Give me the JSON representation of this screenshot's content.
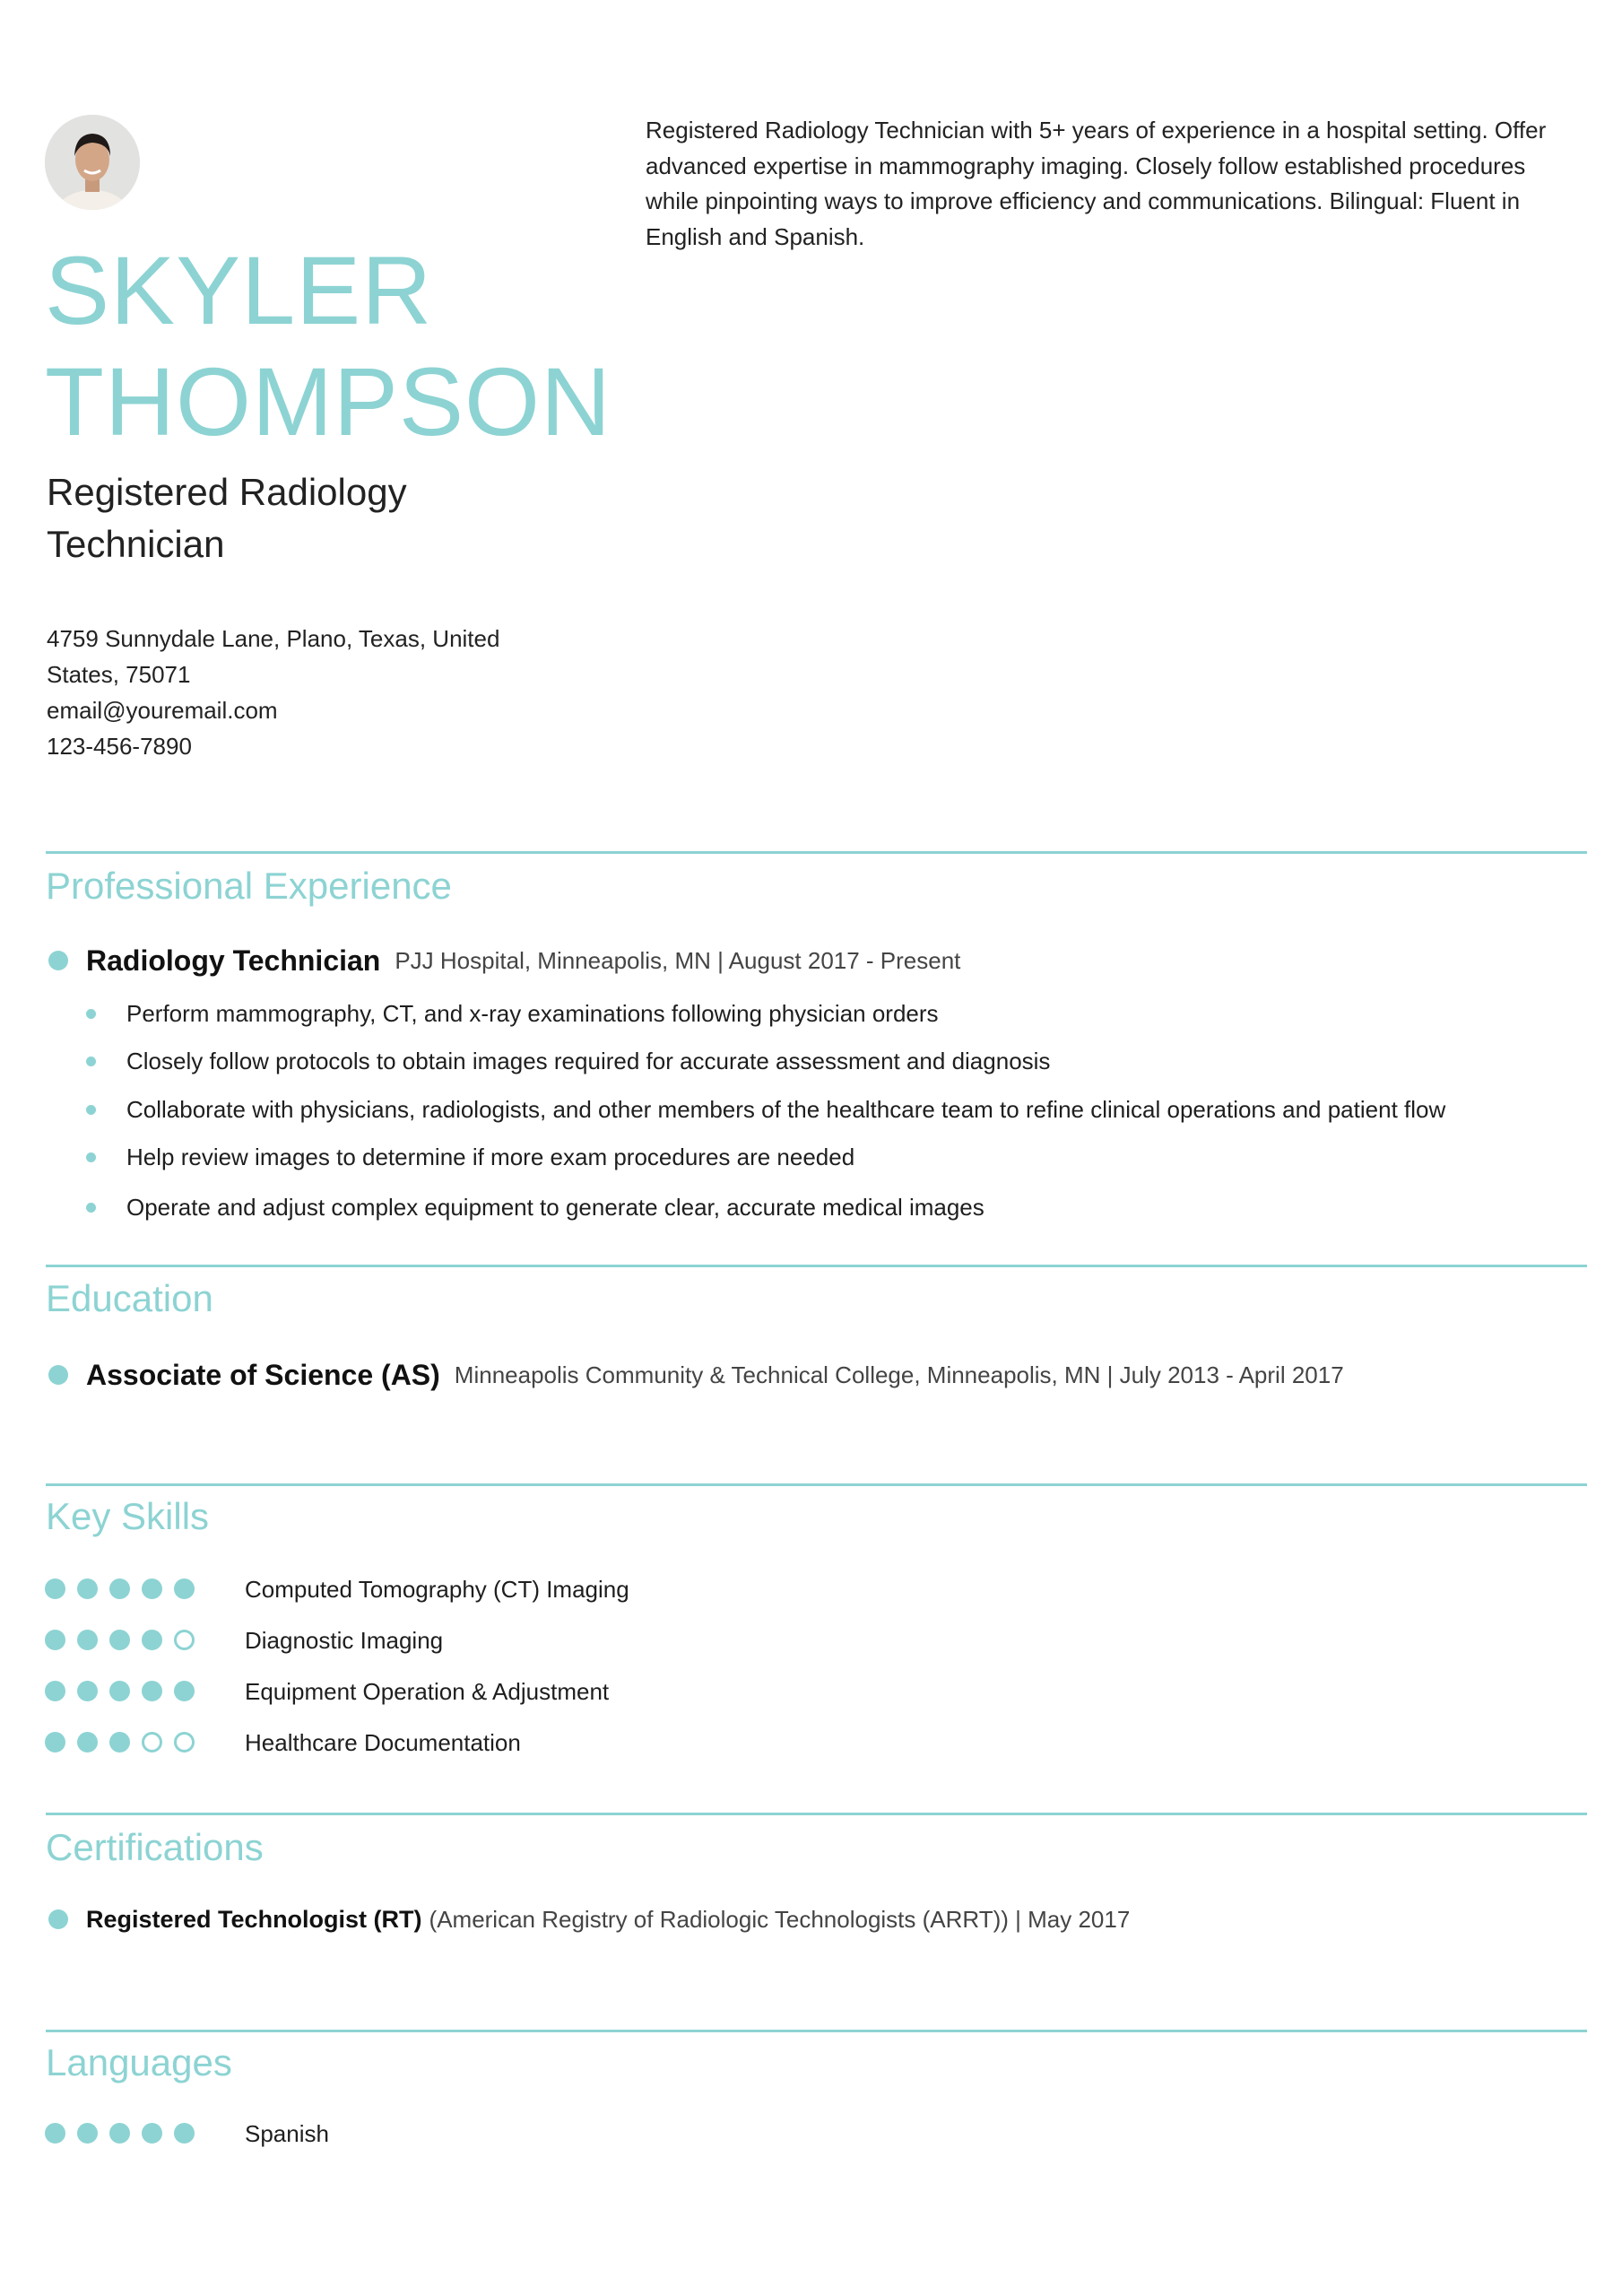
{
  "accent_color": "#8dd3d3",
  "header": {
    "first_name": "SKYLER",
    "last_name": "THOMPSON",
    "title_line1": "Registered Radiology",
    "title_line2": "Technician",
    "address_line1": "4759 Sunnydale Lane, Plano, Texas, United",
    "address_line2": "States, 75071",
    "email": "email@youremail.com",
    "phone": "123-456-7890",
    "summary": "Registered Radiology Technician with 5+ years of experience in a hospital setting. Offer advanced expertise in mammography imaging. Closely follow established procedures while pinpointing ways to improve efficiency and communications. Bilingual: Fluent in English and Spanish."
  },
  "experience": {
    "heading": "Professional Experience",
    "role": "Radiology Technician",
    "meta": "PJJ Hospital, Minneapolis, MN | August 2017 - Present",
    "bullets": [
      "Perform mammography, CT, and x-ray examinations following physician orders",
      "Closely follow protocols to obtain images required for accurate assessment and diagnosis",
      "Collaborate with physicians, radiologists, and other members of the healthcare team to refine clinical operations and patient flow",
      "Help review images to determine if more exam procedures are needed",
      "Operate and adjust complex equipment to generate clear, accurate medical images"
    ]
  },
  "education": {
    "heading": "Education",
    "degree": "Associate of Science (AS)",
    "meta": "Minneapolis Community & Technical College, Minneapolis, MN | July 2013 - April 2017"
  },
  "skills": {
    "heading": "Key Skills",
    "items": [
      {
        "label": "Computed Tomography (CT) Imaging",
        "level": 5,
        "max": 5
      },
      {
        "label": "Diagnostic Imaging",
        "level": 4,
        "max": 5
      },
      {
        "label": "Equipment Operation & Adjustment",
        "level": 5,
        "max": 5
      },
      {
        "label": "Healthcare Documentation",
        "level": 3,
        "max": 5
      }
    ]
  },
  "certifications": {
    "heading": "Certifications",
    "name": "Registered Technologist (RT)",
    "meta": "(American Registry of Radiologic Technologists (ARRT)) | May 2017"
  },
  "languages": {
    "heading": "Languages",
    "items": [
      {
        "label": "Spanish",
        "level": 5,
        "max": 5
      }
    ]
  }
}
